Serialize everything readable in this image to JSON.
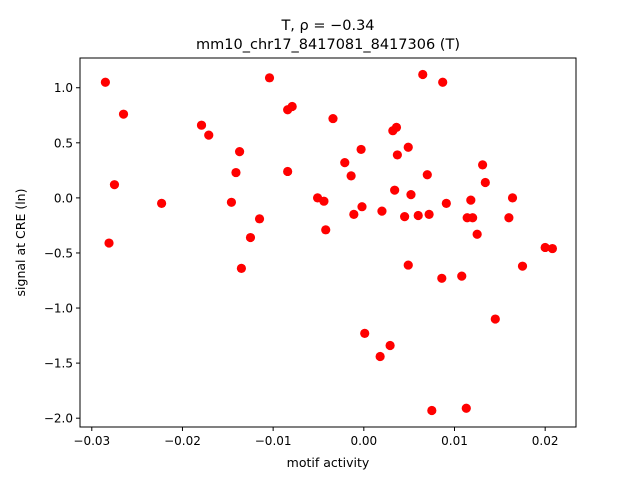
{
  "chart_data": {
    "type": "scatter",
    "title_line1": "T, ρ = −0.34",
    "title_line2": "mm10_chr17_8417081_8417306 (T)",
    "xlabel": "motif activity",
    "ylabel": "signal at CRE (ln)",
    "xlim": [
      -0.0313,
      0.0234
    ],
    "ylim": [
      -2.08,
      1.27
    ],
    "xticks": [
      -0.03,
      -0.02,
      -0.01,
      0.0,
      0.01,
      0.02
    ],
    "xtick_labels": [
      "−0.03",
      "−0.02",
      "−0.01",
      "0.00",
      "0.01",
      "0.02"
    ],
    "yticks": [
      -2.0,
      -1.5,
      -1.0,
      -0.5,
      0.0,
      0.5,
      1.0
    ],
    "ytick_labels": [
      "−2.0",
      "−1.5",
      "−1.0",
      "−0.5",
      "0.0",
      "0.5",
      "1.0"
    ],
    "grid": false,
    "marker_color": "#ff0000",
    "points": [
      {
        "x": -0.0285,
        "y": 1.05
      },
      {
        "x": -0.0265,
        "y": 0.76
      },
      {
        "x": -0.0275,
        "y": 0.12
      },
      {
        "x": -0.0281,
        "y": -0.41
      },
      {
        "x": -0.0223,
        "y": -0.05
      },
      {
        "x": -0.0179,
        "y": 0.66
      },
      {
        "x": -0.0171,
        "y": 0.57
      },
      {
        "x": -0.0146,
        "y": -0.04
      },
      {
        "x": -0.0141,
        "y": 0.23
      },
      {
        "x": -0.0137,
        "y": 0.42
      },
      {
        "x": -0.0135,
        "y": -0.64
      },
      {
        "x": -0.0125,
        "y": -0.36
      },
      {
        "x": -0.0115,
        "y": -0.19
      },
      {
        "x": -0.0104,
        "y": 1.09
      },
      {
        "x": -0.0084,
        "y": 0.8
      },
      {
        "x": -0.0079,
        "y": 0.83
      },
      {
        "x": -0.0084,
        "y": 0.24
      },
      {
        "x": -0.0051,
        "y": 0.0
      },
      {
        "x": -0.0044,
        "y": -0.03
      },
      {
        "x": -0.0042,
        "y": -0.29
      },
      {
        "x": -0.0034,
        "y": 0.72
      },
      {
        "x": -0.0021,
        "y": 0.32
      },
      {
        "x": -0.0014,
        "y": 0.2
      },
      {
        "x": -0.0011,
        "y": -0.15
      },
      {
        "x": -0.0003,
        "y": 0.44
      },
      {
        "x": -0.0002,
        "y": -0.08
      },
      {
        "x": 0.0001,
        "y": -1.23
      },
      {
        "x": 0.0018,
        "y": -1.44
      },
      {
        "x": 0.002,
        "y": -0.12
      },
      {
        "x": 0.0029,
        "y": -1.34
      },
      {
        "x": 0.0032,
        "y": 0.61
      },
      {
        "x": 0.0036,
        "y": 0.64
      },
      {
        "x": 0.0037,
        "y": 0.39
      },
      {
        "x": 0.0034,
        "y": 0.07
      },
      {
        "x": 0.0045,
        "y": -0.17
      },
      {
        "x": 0.0049,
        "y": 0.46
      },
      {
        "x": 0.0049,
        "y": -0.61
      },
      {
        "x": 0.0052,
        "y": 0.03
      },
      {
        "x": 0.006,
        "y": -0.16
      },
      {
        "x": 0.0065,
        "y": 1.12
      },
      {
        "x": 0.007,
        "y": 0.21
      },
      {
        "x": 0.0072,
        "y": -0.15
      },
      {
        "x": 0.0075,
        "y": -1.93
      },
      {
        "x": 0.0087,
        "y": 1.05
      },
      {
        "x": 0.0086,
        "y": -0.73
      },
      {
        "x": 0.0091,
        "y": -0.05
      },
      {
        "x": 0.0108,
        "y": -0.71
      },
      {
        "x": 0.0113,
        "y": -1.91
      },
      {
        "x": 0.0114,
        "y": -0.18
      },
      {
        "x": 0.0118,
        "y": -0.02
      },
      {
        "x": 0.012,
        "y": -0.18
      },
      {
        "x": 0.0125,
        "y": -0.33
      },
      {
        "x": 0.0131,
        "y": 0.3
      },
      {
        "x": 0.0134,
        "y": 0.14
      },
      {
        "x": 0.0145,
        "y": -1.1
      },
      {
        "x": 0.016,
        "y": -0.18
      },
      {
        "x": 0.0164,
        "y": 0.0
      },
      {
        "x": 0.0175,
        "y": -0.62
      },
      {
        "x": 0.02,
        "y": -0.45
      },
      {
        "x": 0.0208,
        "y": -0.46
      }
    ]
  }
}
